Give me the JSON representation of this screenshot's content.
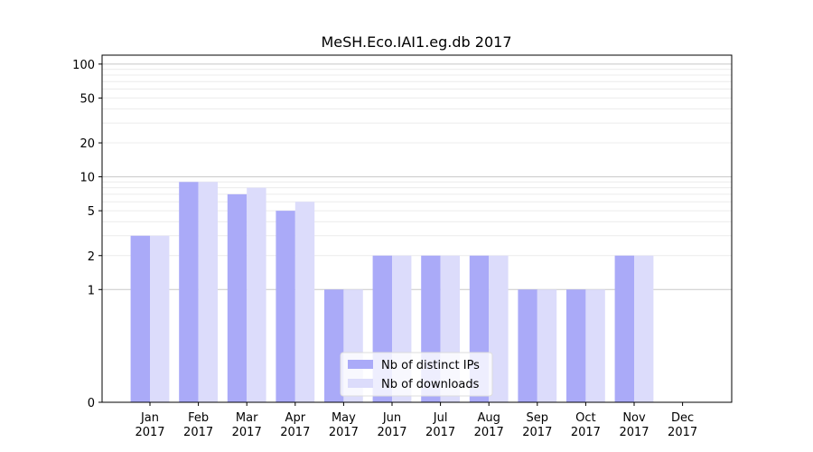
{
  "chart_data": {
    "type": "bar",
    "title": "MeSH.Eco.IAI1.eg.db 2017",
    "xlabel": "",
    "ylabel": "",
    "y_scale": "symlog",
    "ylim": [
      0,
      120
    ],
    "y_ticks": [
      0,
      1,
      2,
      5,
      10,
      20,
      50,
      100
    ],
    "y_tick_labels": [
      "0",
      "1",
      "2",
      "5",
      "10",
      "20",
      "50",
      "100"
    ],
    "categories": [
      [
        "Jan",
        "2017"
      ],
      [
        "Feb",
        "2017"
      ],
      [
        "Mar",
        "2017"
      ],
      [
        "Apr",
        "2017"
      ],
      [
        "May",
        "2017"
      ],
      [
        "Jun",
        "2017"
      ],
      [
        "Jul",
        "2017"
      ],
      [
        "Aug",
        "2017"
      ],
      [
        "Sep",
        "2017"
      ],
      [
        "Oct",
        "2017"
      ],
      [
        "Nov",
        "2017"
      ],
      [
        "Dec",
        "2017"
      ]
    ],
    "series": [
      {
        "name": "Nb of distinct IPs",
        "color": "#aaaaf8",
        "values": [
          3,
          9,
          7,
          5,
          1,
          2,
          2,
          2,
          1,
          1,
          2,
          0
        ]
      },
      {
        "name": "Nb of downloads",
        "color": "#dcdcfb",
        "values": [
          3,
          9,
          8,
          6,
          1,
          2,
          2,
          2,
          1,
          1,
          2,
          0
        ]
      }
    ],
    "legend_position": "lower-center",
    "grid": true
  }
}
